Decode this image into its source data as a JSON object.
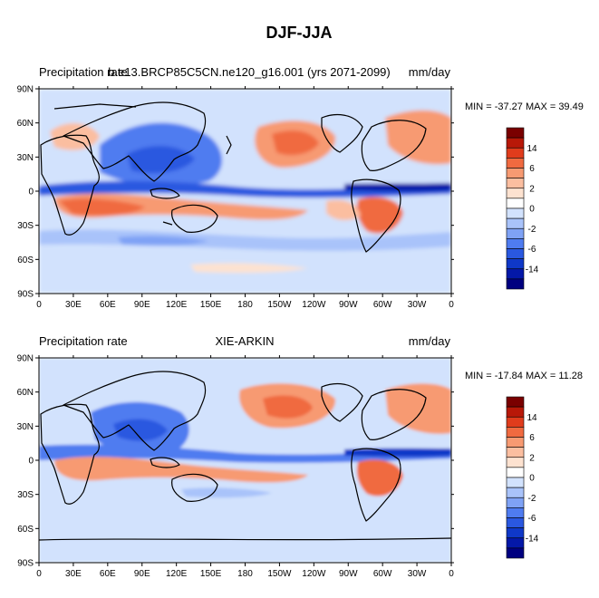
{
  "figure_title": "DJF-JJA",
  "colors": {
    "levels": [
      "#000080",
      "#0418a8",
      "#0f38c8",
      "#2a58e0",
      "#4f7cf0",
      "#7fa2f5",
      "#a9c3fa",
      "#d2e2fd",
      "#ffffff",
      "#fde2d0",
      "#fbbea0",
      "#f79a72",
      "#f06a40",
      "#e03c1c",
      "#b81808",
      "#7a0000"
    ],
    "coast": "#000000",
    "frame": "#000000"
  },
  "colorbar": {
    "labels": [
      "14",
      "6",
      "2",
      "0",
      "-2",
      "-6",
      "-14"
    ]
  },
  "axes": {
    "x_ticks": [
      "0",
      "30E",
      "60E",
      "90E",
      "120E",
      "150E",
      "180",
      "150W",
      "120W",
      "90W",
      "60W",
      "30W",
      "0"
    ],
    "y_ticks": [
      "90N",
      "60N",
      "30N",
      "0",
      "30S",
      "60S",
      "90S"
    ]
  },
  "panels": [
    {
      "left_label": "Precipitation rate",
      "center_label": "b.e13.BRCP85C5CN.ne120_g16.001 (yrs 2071-2099)",
      "right_label": "mm/day",
      "stats": "MIN = -37.27 MAX =  39.49"
    },
    {
      "left_label": "Precipitation rate",
      "center_label": "XIE-ARKIN",
      "right_label": "mm/day",
      "stats": "MIN = -17.84 MAX =  11.28"
    }
  ]
}
